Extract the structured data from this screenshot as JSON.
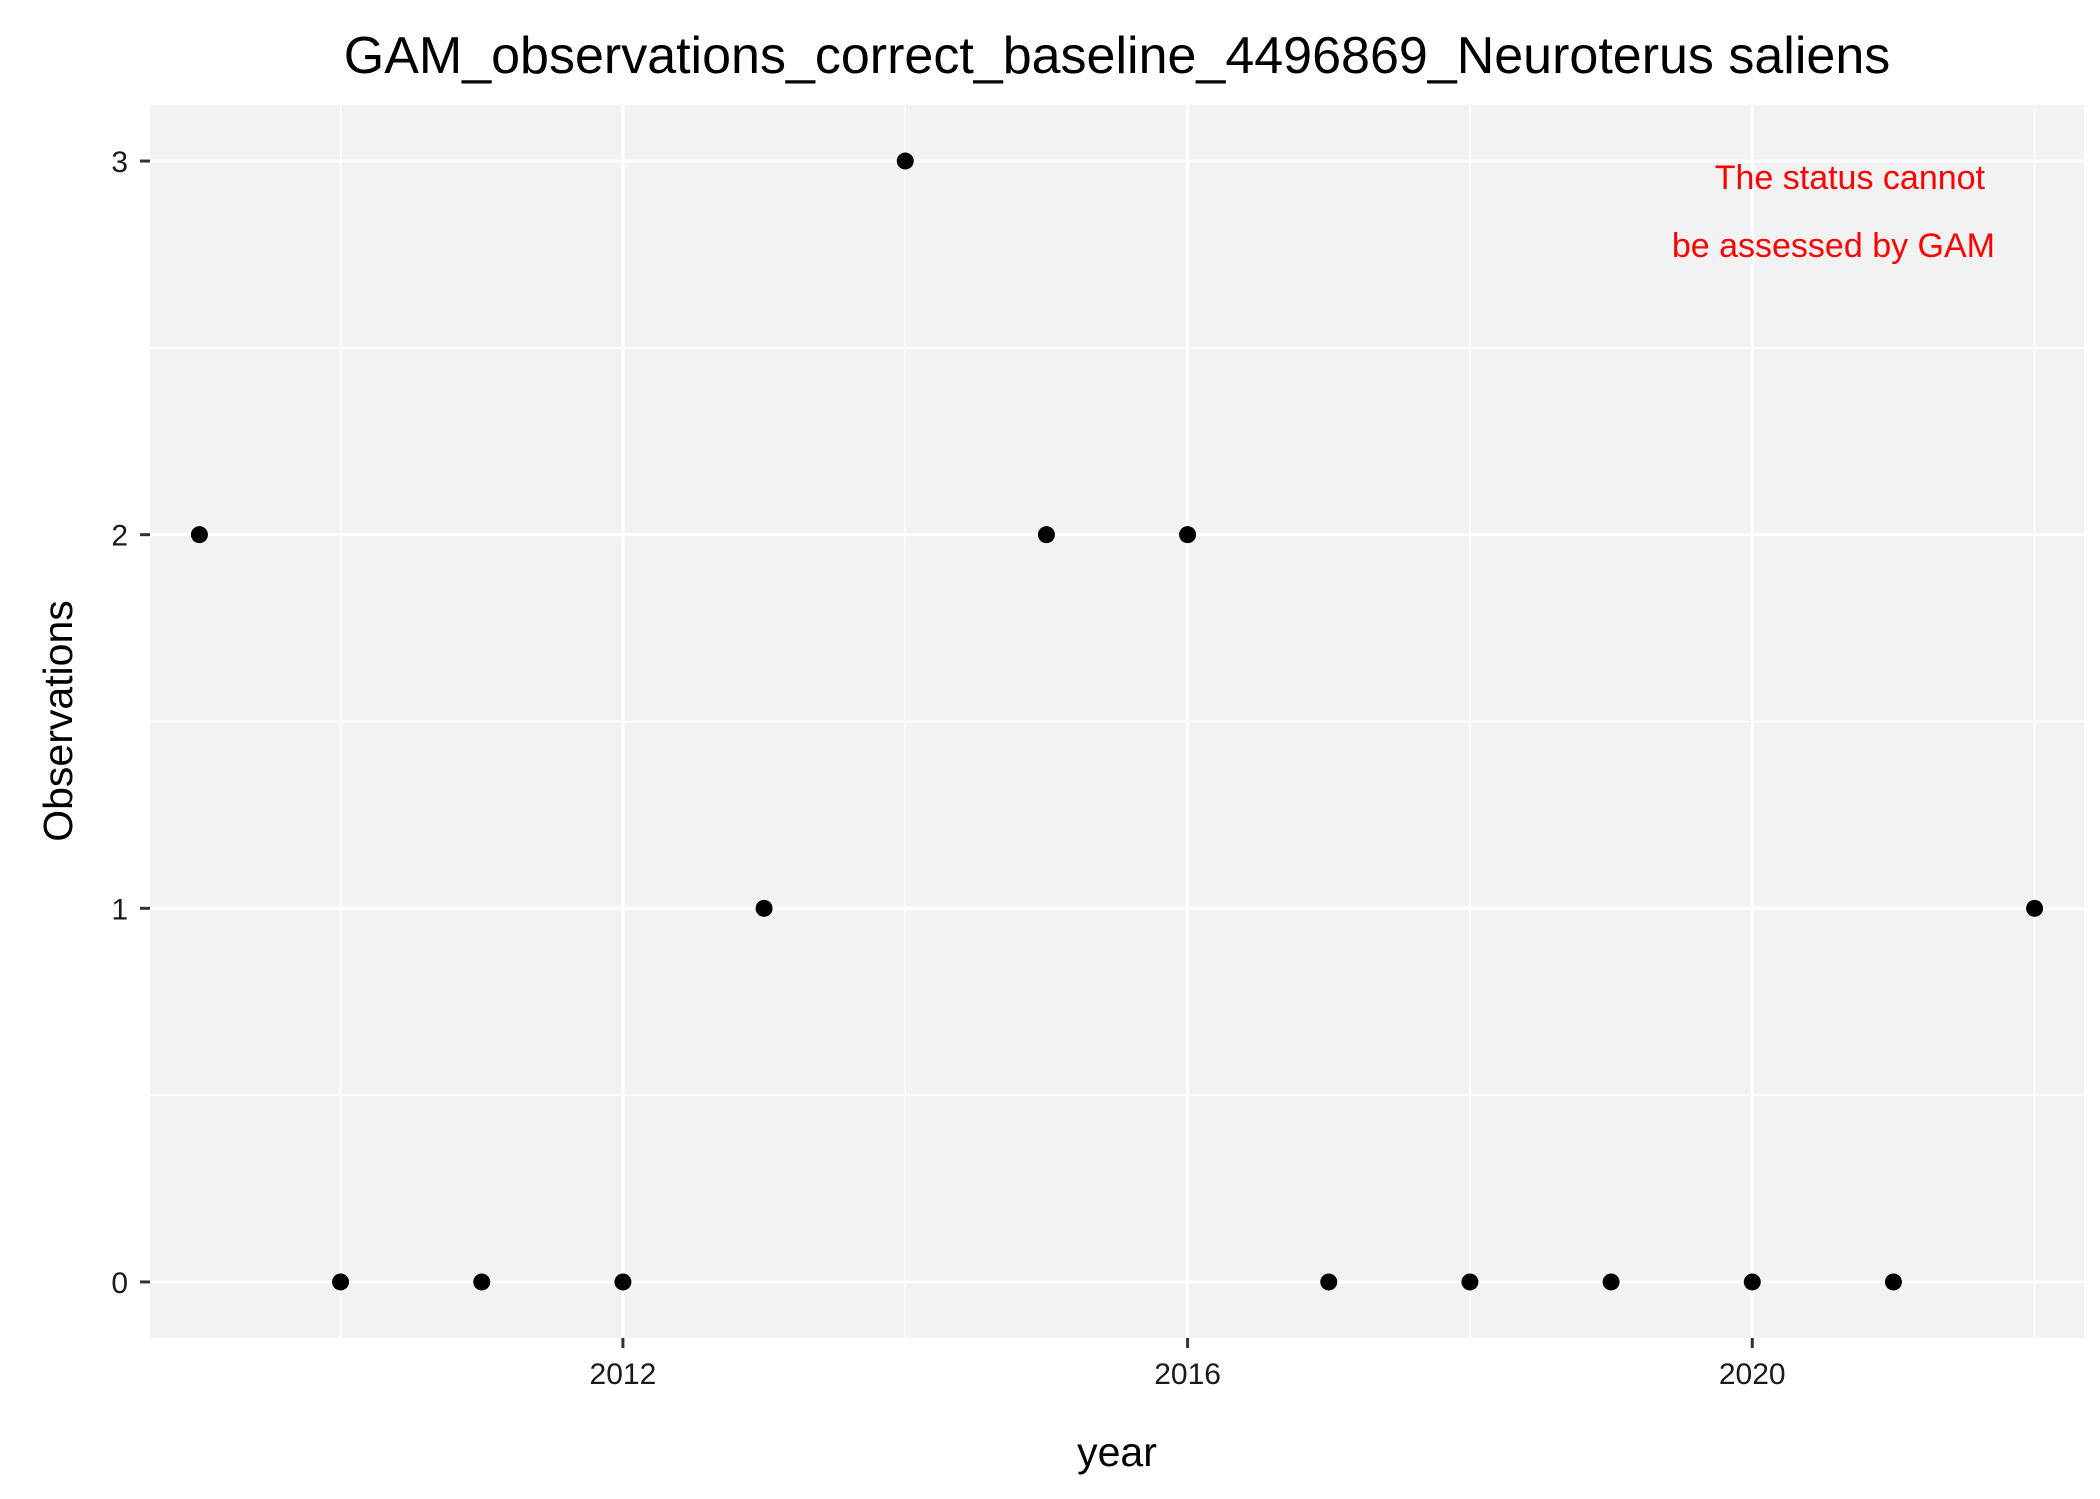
{
  "chart_data": {
    "type": "scatter",
    "title": "GAM_observations_correct_baseline_4496869_Neuroterus saliens",
    "xlabel": "year",
    "ylabel": "Observations",
    "xlim": [
      2008.65,
      2022.35
    ],
    "ylim": [
      -0.15,
      3.15
    ],
    "x_ticks": [
      2012,
      2016,
      2020
    ],
    "x_tick_labels": [
      "2012",
      "2016",
      "2020"
    ],
    "x_minor_grid": [
      2010,
      2014,
      2018,
      2022
    ],
    "y_ticks": [
      0,
      1,
      2,
      3
    ],
    "y_tick_labels": [
      "0",
      "1",
      "2",
      "3"
    ],
    "y_minor_grid": [
      0.5,
      1.5,
      2.5
    ],
    "grid": true,
    "legend": "none",
    "series": [
      {
        "points": [
          {
            "x": 2009,
            "y": 2
          },
          {
            "x": 2010,
            "y": 0
          },
          {
            "x": 2011,
            "y": 0
          },
          {
            "x": 2012,
            "y": 0
          },
          {
            "x": 2013,
            "y": 1
          },
          {
            "x": 2014,
            "y": 3
          },
          {
            "x": 2015,
            "y": 2
          },
          {
            "x": 2016,
            "y": 2
          },
          {
            "x": 2017,
            "y": 0
          },
          {
            "x": 2018,
            "y": 0
          },
          {
            "x": 2019,
            "y": 0
          },
          {
            "x": 2020,
            "y": 0
          },
          {
            "x": 2021,
            "y": 0
          },
          {
            "x": 2022,
            "y": 1
          }
        ],
        "color": "#000000"
      }
    ],
    "annotation": {
      "lines": [
        "The status cannot",
        "be assessed by GAM"
      ],
      "color": "#ff0000",
      "placement": "top-right"
    },
    "panel_background": "#f2f2f2",
    "grid_color": "#ffffff"
  }
}
